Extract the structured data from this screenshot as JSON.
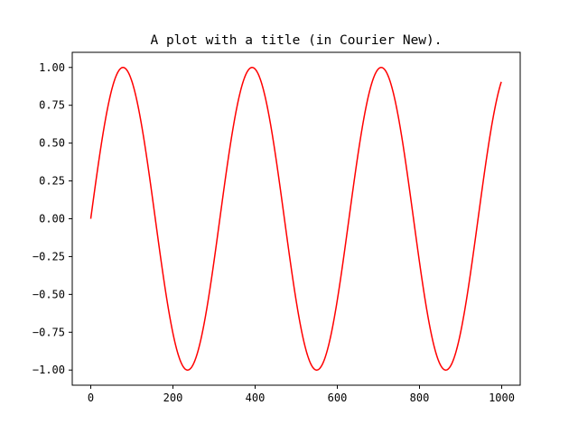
{
  "chart_data": {
    "type": "line",
    "title": "A plot with a title (in Courier New).",
    "xlabel": "",
    "ylabel": "",
    "xlim": [
      -45,
      1045
    ],
    "ylim": [
      -1.1,
      1.1
    ],
    "x_ticks": [
      0,
      200,
      400,
      600,
      800,
      1000
    ],
    "x_tick_labels": [
      "0",
      "200",
      "400",
      "600",
      "800",
      "1000"
    ],
    "y_ticks": [
      -1.0,
      -0.75,
      -0.5,
      -0.25,
      0.0,
      0.25,
      0.5,
      0.75,
      1.0
    ],
    "y_tick_labels": [
      "−1.00",
      "−0.75",
      "−0.50",
      "−0.25",
      "0.00",
      "0.25",
      "0.50",
      "0.75",
      "1.00"
    ],
    "grid": false,
    "series": [
      {
        "color": "#ff0000",
        "function": "sin(x/50)",
        "x_start": 0,
        "x_end": 999,
        "x_step": 1
      }
    ]
  }
}
